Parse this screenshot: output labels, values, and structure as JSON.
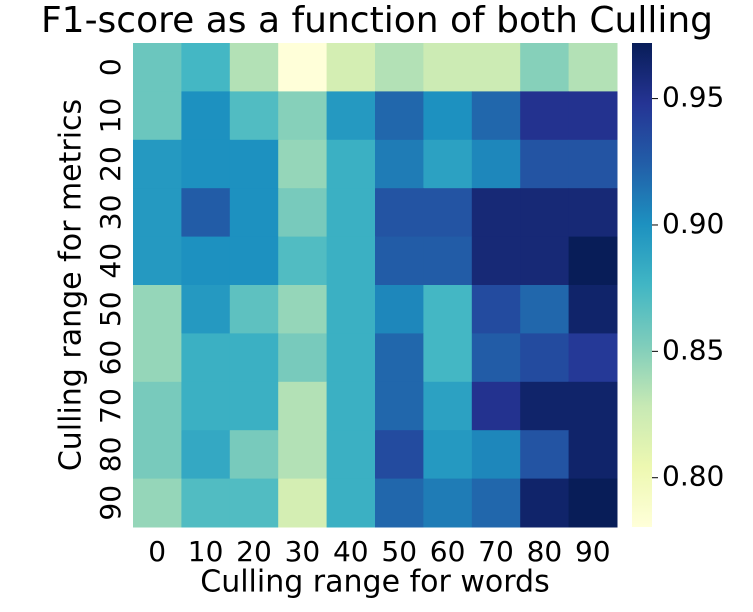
{
  "chart_data": {
    "type": "heatmap",
    "title": "F1-score as a function of both Culling",
    "x_label": "Culling range for words",
    "y_label": "Culling range for metrics",
    "x_categories": [
      "0",
      "10",
      "20",
      "30",
      "40",
      "50",
      "60",
      "70",
      "80",
      "90"
    ],
    "y_categories": [
      "0",
      "10",
      "20",
      "30",
      "40",
      "50",
      "60",
      "70",
      "80",
      "90"
    ],
    "values": [
      [
        0.86,
        0.875,
        0.835,
        0.78,
        0.82,
        0.835,
        0.825,
        0.825,
        0.85,
        0.835
      ],
      [
        0.86,
        0.9,
        0.87,
        0.85,
        0.895,
        0.92,
        0.9,
        0.92,
        0.95,
        0.95
      ],
      [
        0.895,
        0.9,
        0.9,
        0.845,
        0.88,
        0.91,
        0.89,
        0.905,
        0.93,
        0.93
      ],
      [
        0.895,
        0.925,
        0.9,
        0.855,
        0.88,
        0.93,
        0.93,
        0.96,
        0.96,
        0.96
      ],
      [
        0.895,
        0.9,
        0.9,
        0.87,
        0.88,
        0.925,
        0.925,
        0.96,
        0.96,
        0.975
      ],
      [
        0.845,
        0.895,
        0.865,
        0.845,
        0.88,
        0.905,
        0.875,
        0.935,
        0.92,
        0.965
      ],
      [
        0.845,
        0.88,
        0.88,
        0.855,
        0.88,
        0.92,
        0.875,
        0.925,
        0.935,
        0.945
      ],
      [
        0.855,
        0.88,
        0.88,
        0.835,
        0.88,
        0.92,
        0.89,
        0.95,
        0.965,
        0.965
      ],
      [
        0.855,
        0.885,
        0.855,
        0.835,
        0.88,
        0.935,
        0.895,
        0.905,
        0.93,
        0.965
      ],
      [
        0.845,
        0.87,
        0.87,
        0.82,
        0.88,
        0.92,
        0.91,
        0.92,
        0.965,
        0.975
      ]
    ],
    "colormap": [
      "#ffffd9",
      "#edf8b1",
      "#c7e9b4",
      "#7fcdbb",
      "#41b6c4",
      "#1d91c0",
      "#225ea8",
      "#253494",
      "#081d58"
    ],
    "clim": [
      0.7805,
      0.972
    ],
    "cticks": [
      {
        "value": 0.8,
        "label": "0.80"
      },
      {
        "value": 0.85,
        "label": "0.85"
      },
      {
        "value": 0.9,
        "label": "0.90"
      },
      {
        "value": 0.95,
        "label": "0.95"
      }
    ]
  }
}
